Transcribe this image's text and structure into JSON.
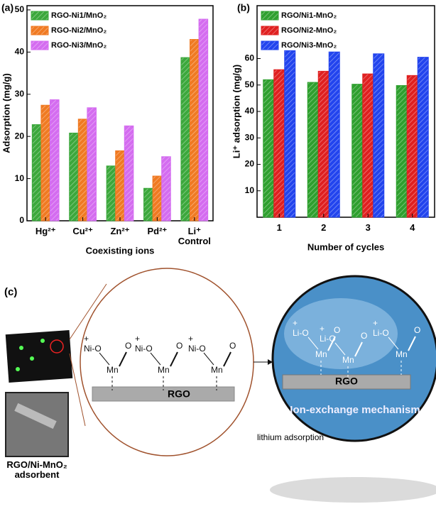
{
  "chart_data": [
    {
      "type": "bar",
      "panel_label": "(a)",
      "y_label": "Adsorption (mg/g)",
      "x_label": "Coexisting ions",
      "categories": [
        "Hg²⁺",
        "Cu²⁺",
        "Zn²⁺",
        "Pd²⁺",
        "Li⁺\nControl"
      ],
      "series": [
        {
          "name": "RGO-Ni1/MnO₂",
          "color": "#3ca83c",
          "values": [
            22.8,
            20.8,
            13,
            7.7,
            38.7
          ]
        },
        {
          "name": "RGO-Ni2/MnO₂",
          "color": "#f07a22",
          "values": [
            27.4,
            24.1,
            16.6,
            10.6,
            43
          ]
        },
        {
          "name": "RGO-Ni3/MnO₂",
          "color": "#d46cf0",
          "values": [
            28.7,
            26.8,
            22.5,
            15.2,
            47.8
          ]
        }
      ],
      "ylim": [
        0,
        51
      ],
      "yticks": [
        0,
        10,
        20,
        30,
        40,
        50
      ],
      "legend": "upper left"
    },
    {
      "type": "bar",
      "panel_label": "(b)",
      "y_label": "Li⁺ adsorption (mg/g)",
      "x_label": "Number of cycles",
      "categories": [
        "1",
        "2",
        "3",
        "4"
      ],
      "series": [
        {
          "name": "RGO/Ni1-MnO₂",
          "color": "#2fa02f",
          "values": [
            52,
            51,
            50.3,
            49.8
          ]
        },
        {
          "name": "RGO/Ni2-MnO₂",
          "color": "#e02020",
          "values": [
            55.8,
            55.2,
            54.2,
            53.6
          ]
        },
        {
          "name": "RGO/Ni3-MnO₂",
          "color": "#2244ee",
          "values": [
            63,
            62.5,
            61.8,
            60.5
          ]
        }
      ],
      "ylim": [
        0,
        80
      ],
      "yticks": [
        10,
        20,
        30,
        40,
        50,
        60
      ],
      "legend": "upper left"
    }
  ],
  "diagram": {
    "panel_label": "(c)",
    "charge": "+",
    "left_group": "Ni-O",
    "right_group": "Li-O",
    "metal": "Mn",
    "oxo": "O",
    "support": "RGO",
    "mechanism": "Ion-exchange mechanism",
    "process": "lithium adsorption",
    "adsorbent": "RGO/Ni-MnO₂\nadsorbent"
  }
}
